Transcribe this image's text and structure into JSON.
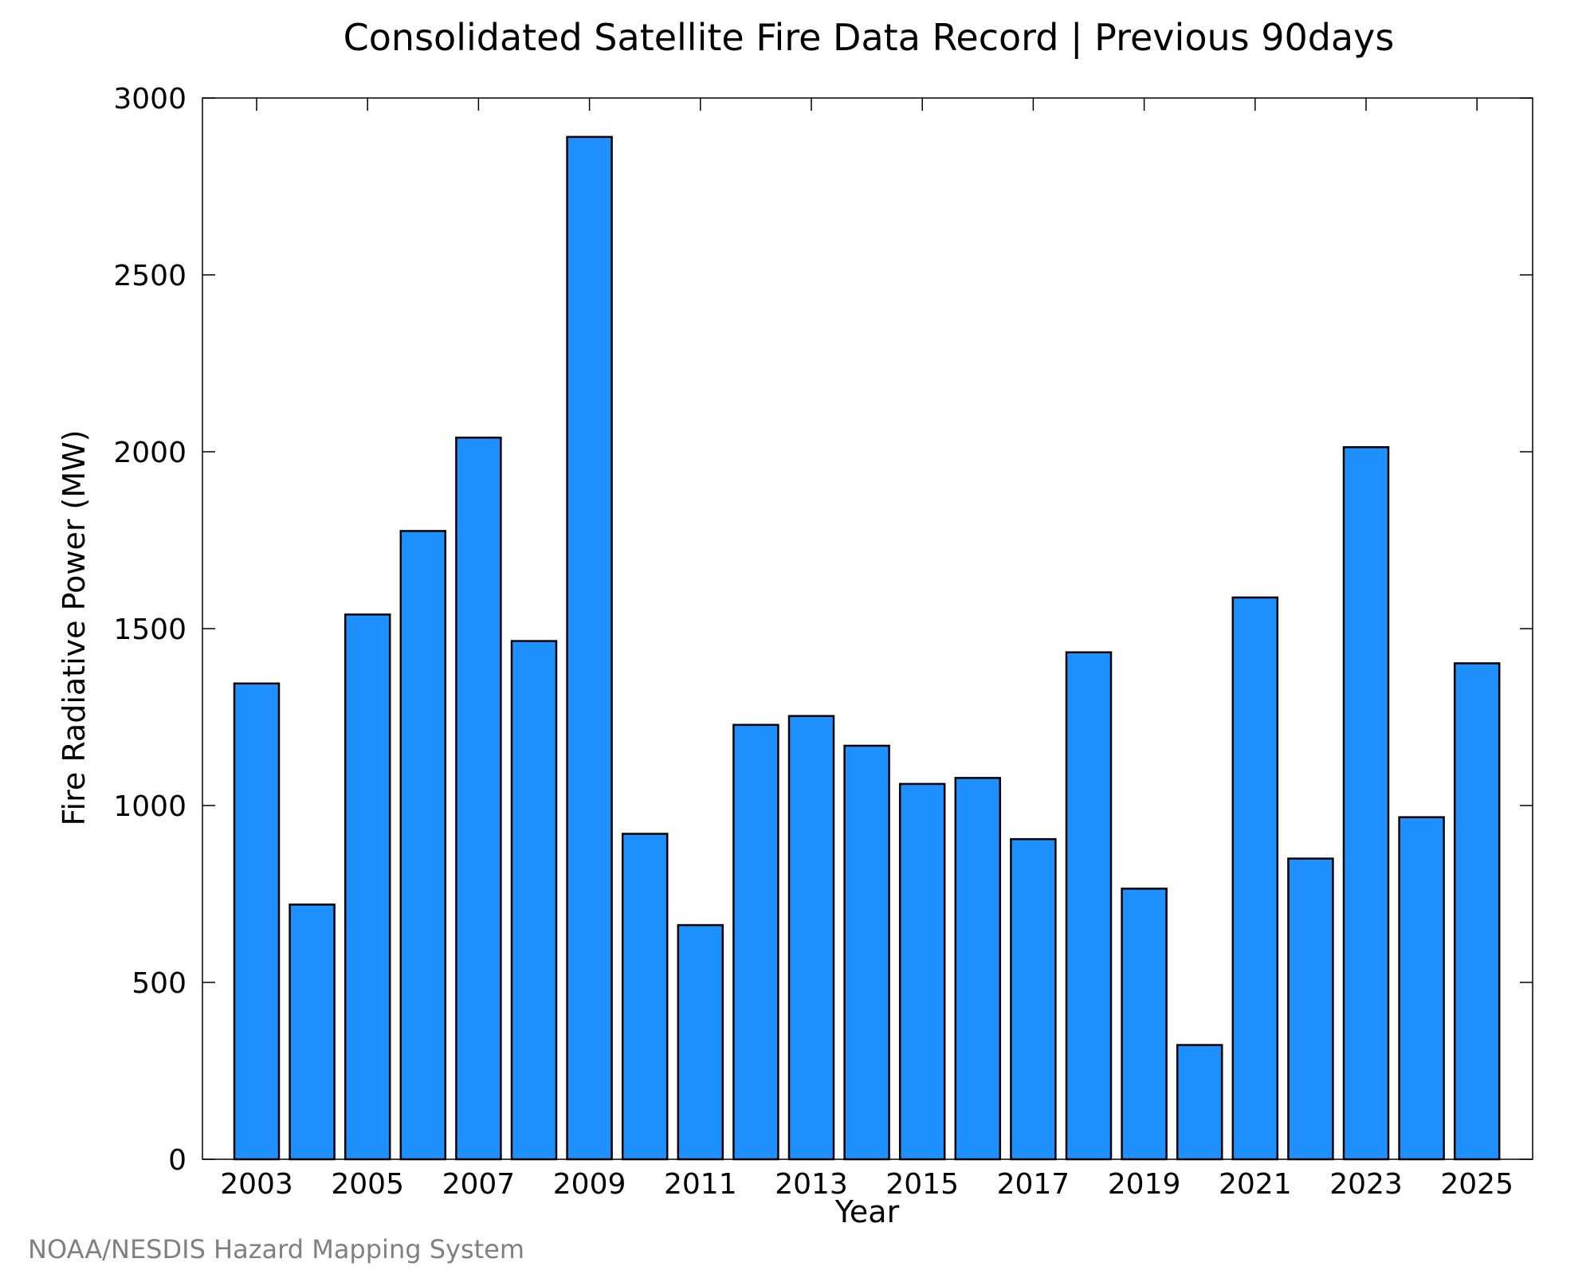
{
  "chart_data": {
    "type": "bar",
    "title": "Consolidated Satellite Fire Data Record | Previous 90days",
    "xlabel": "Year",
    "ylabel": "Fire Radiative Power (MW)",
    "ylim": [
      0,
      3000
    ],
    "y_ticks": [
      "0",
      "500",
      "1000",
      "1500",
      "2000",
      "2500",
      "3000"
    ],
    "x_tick_labels": [
      "2003",
      "2005",
      "2007",
      "2009",
      "2011",
      "2013",
      "2015",
      "2017",
      "2019",
      "2021",
      "2023",
      "2025"
    ],
    "categories": [
      "2003",
      "2004",
      "2005",
      "2006",
      "2007",
      "2008",
      "2009",
      "2010",
      "2011",
      "2012",
      "2013",
      "2014",
      "2015",
      "2016",
      "2017",
      "2018",
      "2019",
      "2020",
      "2021",
      "2022",
      "2023",
      "2024",
      "2025"
    ],
    "values": [
      1345,
      720,
      1540,
      1776,
      2040,
      1465,
      2890,
      920,
      662,
      1228,
      1253,
      1169,
      1061,
      1078,
      905,
      1433,
      765,
      323,
      1588,
      850,
      2013,
      967,
      1402
    ],
    "bar_color": "#1e90ff",
    "grid": false,
    "legend": "none"
  },
  "footer": {
    "credit": "NOAA/NESDIS Hazard Mapping System",
    "credit_color": "#808080"
  }
}
